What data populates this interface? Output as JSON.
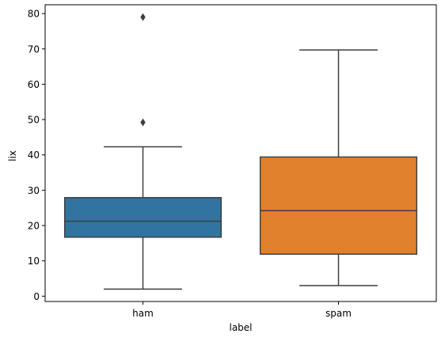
{
  "chart_data": {
    "type": "box",
    "xlabel": "label",
    "ylabel": "lix",
    "ylim": [
      -1.5,
      82.5
    ],
    "yticks": [
      0,
      10,
      20,
      30,
      40,
      50,
      60,
      70,
      80
    ],
    "categories": [
      "ham",
      "spam"
    ],
    "boxes": [
      {
        "category": "ham",
        "color": "#3274a1",
        "whisker_low": 2.0,
        "q1": 16.7,
        "median": 21.2,
        "q3": 27.9,
        "whisker_high": 42.3,
        "outliers": [
          49.2,
          79.0
        ]
      },
      {
        "category": "spam",
        "color": "#e1812c",
        "whisker_low": 3.0,
        "q1": 11.9,
        "median": 24.2,
        "q3": 39.4,
        "whisker_high": 69.7,
        "outliers": []
      }
    ],
    "grid": false,
    "legend": "none"
  }
}
